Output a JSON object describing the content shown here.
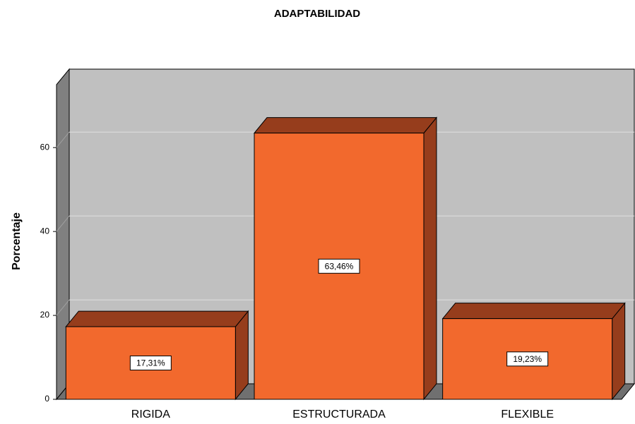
{
  "chart_data": {
    "type": "bar3d",
    "title": "ADAPTABILIDAD",
    "y_label": "Porcentaje",
    "categories": [
      "RIGIDA",
      "ESTRUCTURADA",
      "FLEXIBLE"
    ],
    "values": [
      17.31,
      63.46,
      19.23
    ],
    "value_labels": [
      "17,31%",
      "63,46%",
      "19,23%"
    ],
    "color": "#f2692d",
    "shade_color": "#963d1c",
    "ylim": [
      0,
      75
    ],
    "yticks": [
      0,
      20,
      40,
      60
    ],
    "grid": true
  }
}
